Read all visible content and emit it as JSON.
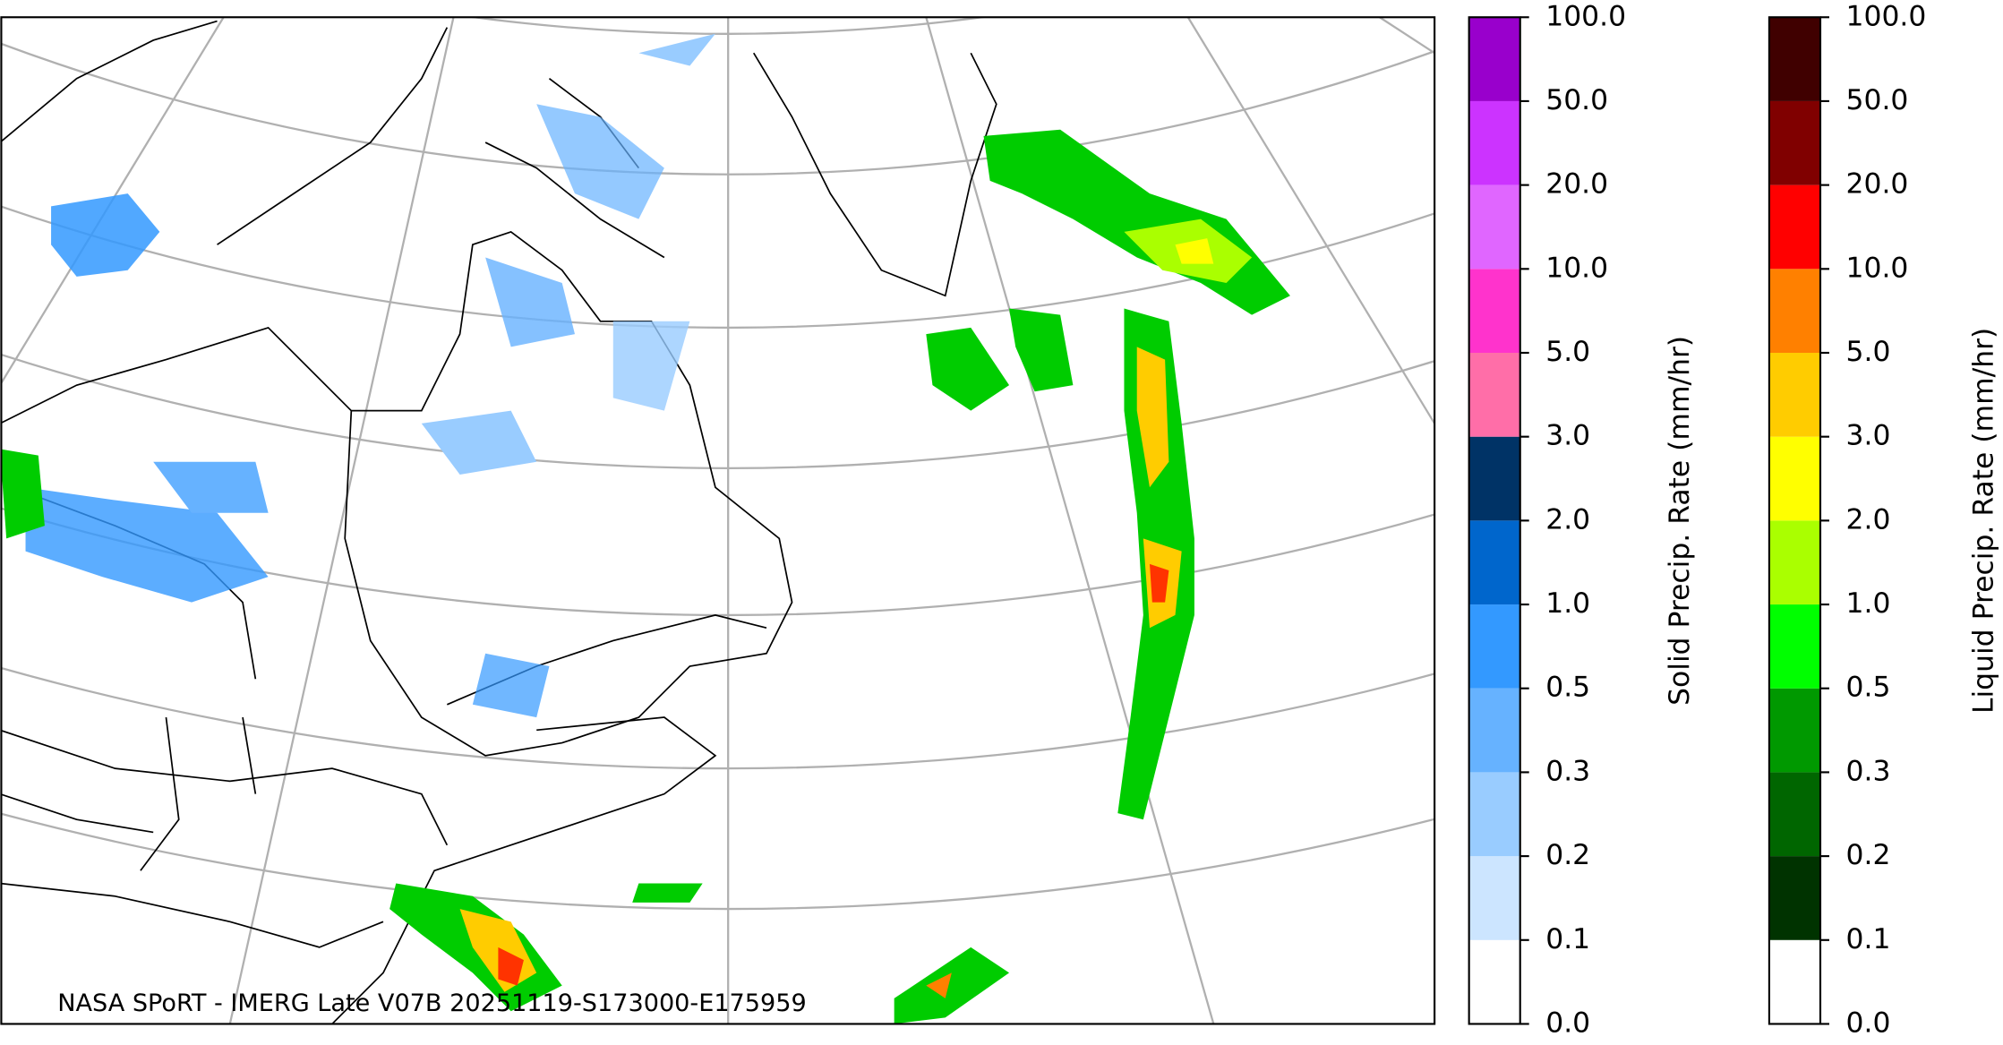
{
  "annotation": "NASA SPoRT - IMERG Late V07B 20251119-S173000-E175959",
  "colorbars": [
    {
      "label": "Solid Precip. Rate (mm/hr)",
      "colors": [
        "#ffffff",
        "#cce5ff",
        "#99ccff",
        "#66b2ff",
        "#3399ff",
        "#0066cc",
        "#003366",
        "#ff6ea8",
        "#ff33cc",
        "#e066ff",
        "#cc33ff",
        "#9900cc"
      ],
      "ticks": [
        {
          "value": 0,
          "label": "0.0"
        },
        0.1,
        0.2,
        0.3,
        0.5,
        {
          "value": 1,
          "label": "1.0"
        },
        {
          "value": 2,
          "label": "2.0"
        },
        {
          "value": 3,
          "label": "3.0"
        },
        {
          "value": 5,
          "label": "5.0"
        },
        {
          "value": 10,
          "label": "10.0"
        },
        {
          "value": 20,
          "label": "20.0"
        },
        {
          "value": 50,
          "label": "50.0"
        },
        {
          "value": 100,
          "label": "100.0"
        }
      ]
    },
    {
      "label": "Liquid Precip. Rate (mm/hr)",
      "colors": [
        "#ffffff",
        "#003300",
        "#006600",
        "#009900",
        "#00ff00",
        "#aaff00",
        "#ffff00",
        "#ffcc00",
        "#ff8000",
        "#ff0000",
        "#800000",
        "#400000"
      ],
      "ticks": [
        {
          "value": 0,
          "label": "0.0"
        },
        0.1,
        0.2,
        0.3,
        0.5,
        {
          "value": 1,
          "label": "1.0"
        },
        {
          "value": 2,
          "label": "2.0"
        },
        {
          "value": 3,
          "label": "3.0"
        },
        {
          "value": 5,
          "label": "5.0"
        },
        {
          "value": 10,
          "label": "10.0"
        },
        {
          "value": 20,
          "label": "20.0"
        },
        {
          "value": 50,
          "label": "50.0"
        },
        {
          "value": 100,
          "label": "100.0"
        }
      ]
    }
  ]
}
